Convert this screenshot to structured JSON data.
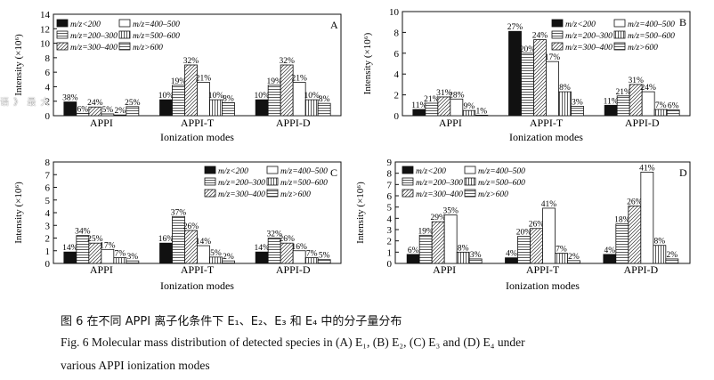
{
  "legend_labels": [
    "m/z<200",
    "m/z=400–500",
    "m/z=200–300",
    "m/z=500–600",
    "m/z=300–400",
    "m/z>600"
  ],
  "chart_data": [
    {
      "type": "bar",
      "panel_letter": "A",
      "ylabel": "Intensity (×10⁶)",
      "xlabel": "Ionization  modes",
      "ylim": [
        0,
        14
      ],
      "yticks": [
        0,
        2,
        4,
        6,
        8,
        10,
        12,
        14
      ],
      "categories": [
        "APPI",
        "APPI-T",
        "APPI-D"
      ],
      "series": [
        {
          "name": "m/z<200",
          "values": [
            1.9,
            2.2,
            2.2
          ],
          "labels": [
            "38%",
            "10%",
            "10%"
          ]
        },
        {
          "name": "m/z=200–300",
          "values": [
            0.3,
            4.2,
            4.2
          ],
          "labels": [
            "6%",
            "19%",
            "19%"
          ]
        },
        {
          "name": "m/z=300–400",
          "values": [
            1.2,
            7.0,
            7.0
          ],
          "labels": [
            "24%",
            "32%",
            "32%"
          ]
        },
        {
          "name": "m/z=400–500",
          "values": [
            0.25,
            4.6,
            4.6
          ],
          "labels": [
            "5%",
            "21%",
            "21%"
          ]
        },
        {
          "name": "m/z=500–600",
          "values": [
            0.1,
            2.2,
            2.2
          ],
          "labels": [
            "2%",
            "10%",
            "10%"
          ]
        },
        {
          "name": "m/z>600",
          "values": [
            1.25,
            1.8,
            1.7
          ],
          "labels": [
            "25%",
            "8%",
            "8%"
          ]
        }
      ]
    },
    {
      "type": "bar",
      "panel_letter": "B",
      "ylabel": "Intensity (×10⁶)",
      "xlabel": "Ionization  modes",
      "ylim": [
        0,
        10
      ],
      "yticks": [
        0,
        2,
        4,
        6,
        8,
        10
      ],
      "categories": [
        "APPI",
        "APPI-T",
        "APPI-D"
      ],
      "series": [
        {
          "name": "m/z<200",
          "values": [
            0.6,
            8.1,
            1.0
          ],
          "labels": [
            "11%",
            "27%",
            "11%"
          ]
        },
        {
          "name": "m/z=200–300",
          "values": [
            1.2,
            6.0,
            1.9
          ],
          "labels": [
            "21%",
            "20%",
            "21%"
          ]
        },
        {
          "name": "m/z=300–400",
          "values": [
            1.8,
            7.3,
            3.0
          ],
          "labels": [
            "31%",
            "24%",
            "31%"
          ]
        },
        {
          "name": "m/z=400–500",
          "values": [
            1.6,
            5.2,
            2.3
          ],
          "labels": [
            "28%",
            "17%",
            "24%"
          ]
        },
        {
          "name": "m/z=500–600",
          "values": [
            0.5,
            2.3,
            0.6
          ],
          "labels": [
            "9%",
            "8%",
            "7%"
          ]
        },
        {
          "name": "m/z>600",
          "values": [
            0.05,
            0.9,
            0.55
          ],
          "labels": [
            "1%",
            "3%",
            "6%"
          ]
        }
      ]
    },
    {
      "type": "bar",
      "panel_letter": "C",
      "ylabel": "Intensity (×10⁶)",
      "xlabel": "Ionization  modes",
      "ylim": [
        0,
        8
      ],
      "yticks": [
        0,
        1,
        2,
        3,
        4,
        5,
        6,
        7,
        8
      ],
      "categories": [
        "APPI",
        "APPI-T",
        "APPI-D"
      ],
      "series": [
        {
          "name": "m/z<200",
          "values": [
            0.9,
            1.6,
            0.9
          ],
          "labels": [
            "14%",
            "16%",
            "14%"
          ]
        },
        {
          "name": "m/z=200–300",
          "values": [
            2.2,
            3.7,
            2.0
          ],
          "labels": [
            "34%",
            "37%",
            "32%"
          ]
        },
        {
          "name": "m/z=300–400",
          "values": [
            1.6,
            2.6,
            1.6
          ],
          "labels": [
            "25%",
            "26%",
            "26%"
          ]
        },
        {
          "name": "m/z=400–500",
          "values": [
            1.1,
            1.4,
            1.0
          ],
          "labels": [
            "17%",
            "14%",
            "16%"
          ]
        },
        {
          "name": "m/z=500–600",
          "values": [
            0.45,
            0.5,
            0.45
          ],
          "labels": [
            "7%",
            "5%",
            "7%"
          ]
        },
        {
          "name": "m/z>600",
          "values": [
            0.2,
            0.2,
            0.3
          ],
          "labels": [
            "3%",
            "2%",
            "5%"
          ]
        }
      ]
    },
    {
      "type": "bar",
      "panel_letter": "D",
      "ylabel": "Intensity (×10⁶)",
      "xlabel": "Ionization  modes",
      "ylim": [
        0,
        9
      ],
      "yticks": [
        0,
        1,
        2,
        3,
        4,
        5,
        6,
        7,
        8,
        9
      ],
      "categories": [
        "APPI",
        "APPI-T",
        "APPI-D"
      ],
      "series": [
        {
          "name": "m/z<200",
          "values": [
            0.8,
            0.5,
            0.8
          ],
          "labels": [
            "6%",
            "4%",
            "4%"
          ]
        },
        {
          "name": "m/z=200–300",
          "values": [
            2.5,
            2.4,
            3.5
          ],
          "labels": [
            "19%",
            "20%",
            "18%"
          ]
        },
        {
          "name": "m/z=300–400",
          "values": [
            3.7,
            3.1,
            5.1
          ],
          "labels": [
            "29%",
            "26%",
            "26%"
          ]
        },
        {
          "name": "m/z=400–500",
          "values": [
            4.3,
            4.9,
            8.1
          ],
          "labels": [
            "35%",
            "41%",
            "41%"
          ]
        },
        {
          "name": "m/z=500–600",
          "values": [
            1.0,
            0.9,
            1.6
          ],
          "labels": [
            "8%",
            "7%",
            "8%"
          ]
        },
        {
          "name": "m/z>600",
          "values": [
            0.4,
            0.25,
            0.4
          ],
          "labels": [
            "3%",
            "2%",
            "2%"
          ]
        }
      ]
    }
  ],
  "caption_cn": "图 6    在不同 APPI 离子化条件下 E₁、E₂、E₃ 和 E₄ 中的分子量分布",
  "caption_en_line1": "Fig. 6    Molecular mass distribution of detected species in (A) E₁, (B) E₂, (C) E₃ and (D) E₄ under",
  "caption_en_line2": "various APPI ionization modes",
  "overlay_text": "语 》 最 大"
}
